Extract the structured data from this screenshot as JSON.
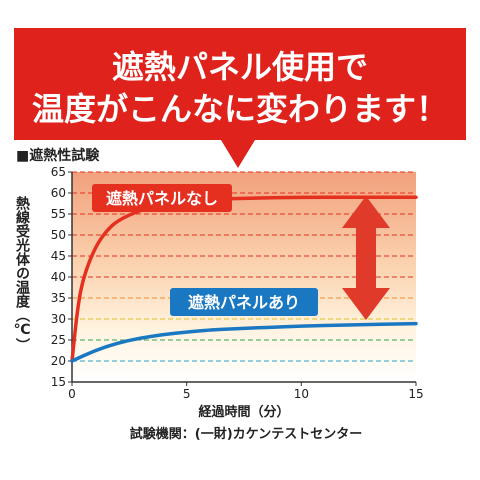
{
  "headline": {
    "line1": "遮熱パネル使用で",
    "line2": "温度がこんなに変わります！"
  },
  "section_label": "■遮熱性試験",
  "labels": {
    "without": "遮熱パネルなし",
    "with": "遮熱パネルあり"
  },
  "source": "試験機関：(一財)カケンテストセンター",
  "colors": {
    "banner_red": "#e0221c",
    "line_without": "#e53020",
    "line_with": "#1a78c2",
    "label_without_bg": "#e53020",
    "label_with_bg": "#1a78c2",
    "arrow": "#e03a2a",
    "bg_top": "#f4a582",
    "bg_bottom": "#ffffff",
    "grid_red": "#e53020",
    "grid_orange": "#f08c2a",
    "grid_yellow": "#e0c020",
    "grid_green": "#3aa050",
    "grid_cyan": "#2aa8c8"
  },
  "chart_data": {
    "type": "line",
    "xlabel": "経過時間（分）",
    "ylabel": "熱線受光体の温度（℃）",
    "xlim": [
      0,
      15
    ],
    "ylim": [
      15,
      65
    ],
    "xticks": [
      0,
      5,
      10,
      15
    ],
    "yticks": [
      15,
      20,
      25,
      30,
      35,
      40,
      45,
      50,
      55,
      60,
      65
    ],
    "grid": true,
    "series": [
      {
        "name": "遮熱パネルなし",
        "x": [
          0,
          0.25,
          0.5,
          1,
          1.5,
          2,
          3,
          4,
          5,
          6,
          8,
          10,
          12,
          15
        ],
        "y": [
          20,
          33,
          40,
          47,
          51,
          53.5,
          56,
          57.3,
          58,
          58.5,
          58.8,
          59,
          59,
          59
        ]
      },
      {
        "name": "遮熱パネルあり",
        "x": [
          0,
          1,
          2,
          3,
          4,
          5,
          6,
          8,
          10,
          12,
          15
        ],
        "y": [
          20,
          22.5,
          24.3,
          25.5,
          26.3,
          26.9,
          27.4,
          27.9,
          28.3,
          28.6,
          28.9
        ]
      }
    ]
  }
}
